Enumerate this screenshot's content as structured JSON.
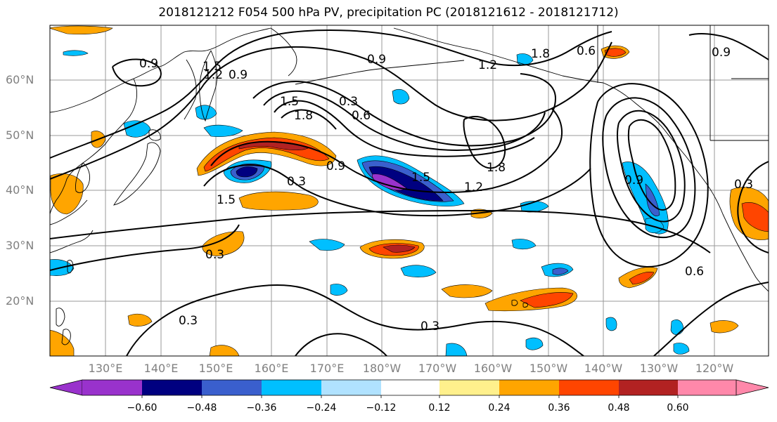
{
  "title": "2018121212 F054 500 hPa PV, precipitation PC (2018121612 - 2018121712)",
  "latitude_labels": [
    "60°N",
    "50°N",
    "40°N",
    "30°N",
    "20°N"
  ],
  "longitude_labels": [
    "130°E",
    "140°E",
    "150°E",
    "160°E",
    "170°E",
    "180°W",
    "170°W",
    "160°W",
    "150°W",
    "140°W",
    "130°W",
    "120°W"
  ],
  "contour_labels": [
    "0.9",
    "1.5",
    "1.2",
    "0.9",
    "0.9",
    "0.3",
    "0.6",
    "1.8",
    "1.5",
    "1.8",
    "1.5",
    "1.2",
    "1.8",
    "1.2",
    "0.3",
    "0.9",
    "0.3",
    "1.5",
    "0.3",
    "0.3",
    "0.6",
    "0.9",
    "0.6",
    "0.9",
    "0.3"
  ],
  "colorbar": {
    "tick_labels": [
      "−0.60",
      "−0.48",
      "−0.36",
      "−0.24",
      "−0.12",
      "0.12",
      "0.24",
      "0.36",
      "0.48",
      "0.60"
    ],
    "colors": [
      "#9932cc",
      "#000080",
      "#3a5fcd",
      "#00bfff",
      "#b0e2ff",
      "#ffffff",
      "#fff08c",
      "#ffa500",
      "#ff4500",
      "#b22222",
      "#ff88aa"
    ]
  }
}
